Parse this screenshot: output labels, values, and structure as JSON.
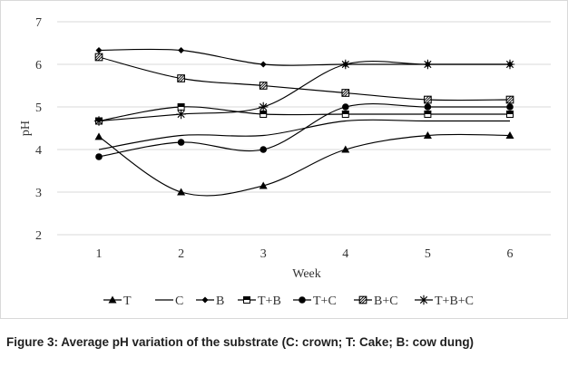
{
  "chart_data": {
    "type": "line",
    "title": "",
    "xlabel": "Week",
    "ylabel": "pH",
    "x": [
      1,
      2,
      3,
      4,
      5,
      6
    ],
    "x_tick_labels": [
      "1",
      "2",
      "3",
      "4",
      "5",
      "6"
    ],
    "ylim": [
      2,
      7
    ],
    "y_ticks": [
      2,
      3,
      4,
      5,
      6,
      7
    ],
    "y_tick_labels": [
      "2",
      "3",
      "4",
      "5",
      "6",
      "7"
    ],
    "grid": true,
    "legend_position": "bottom",
    "series": [
      {
        "name": "T",
        "marker": "triangle",
        "values": [
          4.3,
          3.0,
          3.15,
          4.0,
          4.33,
          4.33
        ]
      },
      {
        "name": "C",
        "marker": "none",
        "values": [
          4.0,
          4.33,
          4.33,
          4.67,
          4.67,
          4.67
        ]
      },
      {
        "name": "B",
        "marker": "diamond",
        "values": [
          6.33,
          6.33,
          6.0,
          6.0,
          6.0,
          6.0
        ]
      },
      {
        "name": "T+B",
        "marker": "square-half",
        "values": [
          4.67,
          5.0,
          4.83,
          4.83,
          4.83,
          4.83
        ]
      },
      {
        "name": "T+C",
        "marker": "circle",
        "values": [
          3.83,
          4.17,
          4.0,
          5.0,
          5.0,
          5.0
        ]
      },
      {
        "name": "B+C",
        "marker": "square-hatched",
        "values": [
          6.17,
          5.67,
          5.5,
          5.33,
          5.17,
          5.17
        ]
      },
      {
        "name": "T+B+C",
        "marker": "asterisk",
        "values": [
          4.67,
          4.83,
          5.0,
          6.0,
          6.0,
          6.0
        ]
      }
    ]
  },
  "caption": "Figure 3: Average pH variation of the substrate (C: crown; T: Cake; B: cow dung)"
}
